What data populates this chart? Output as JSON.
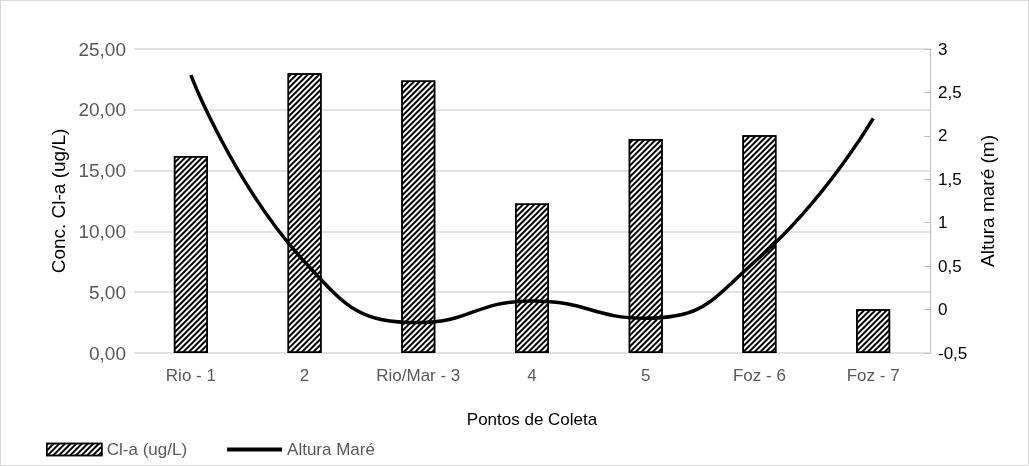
{
  "chart_data": {
    "type": "bar",
    "xlabel": "Pontos de Coleta",
    "ylabel": "Conc. Cl-a (ug/L)",
    "y2label": "Altura maré (m)",
    "categories": [
      "Rio - 1",
      "2",
      "Rio/Mar - 3",
      "4",
      "5",
      "Foz - 6",
      "Foz - 7"
    ],
    "series": [
      {
        "name": "Cl-a (ug/L)",
        "color": "#000000",
        "values": [
          16.2,
          23.0,
          22.4,
          12.3,
          17.6,
          17.9,
          3.6
        ]
      },
      {
        "name": "Altura Maré",
        "type": "line",
        "color": "#000000",
        "axis": "y2",
        "values": [
          2.7,
          0.55,
          -0.15,
          0.1,
          -0.1,
          0.6,
          2.2
        ]
      }
    ],
    "ylim": [
      0,
      25
    ],
    "yticks": [
      {
        "value": 0,
        "label": "0,00"
      },
      {
        "value": 5,
        "label": "5,00"
      },
      {
        "value": 10,
        "label": "10,00"
      },
      {
        "value": 15,
        "label": "15,00"
      },
      {
        "value": 20,
        "label": "20,00"
      },
      {
        "value": 25,
        "label": "25,00"
      }
    ],
    "y2lim": [
      -0.5,
      3
    ],
    "y2ticks": [
      {
        "value": -0.5,
        "label": "-0,5"
      },
      0,
      {
        "value": 0.5,
        "label": "0,5"
      },
      1,
      {
        "value": 1.5,
        "label": "1,5"
      },
      2,
      {
        "value": 2.5,
        "label": "2,5"
      },
      3
    ],
    "grid": "y",
    "legend": "bottom left",
    "marker": "none",
    "line_style": "solid"
  }
}
